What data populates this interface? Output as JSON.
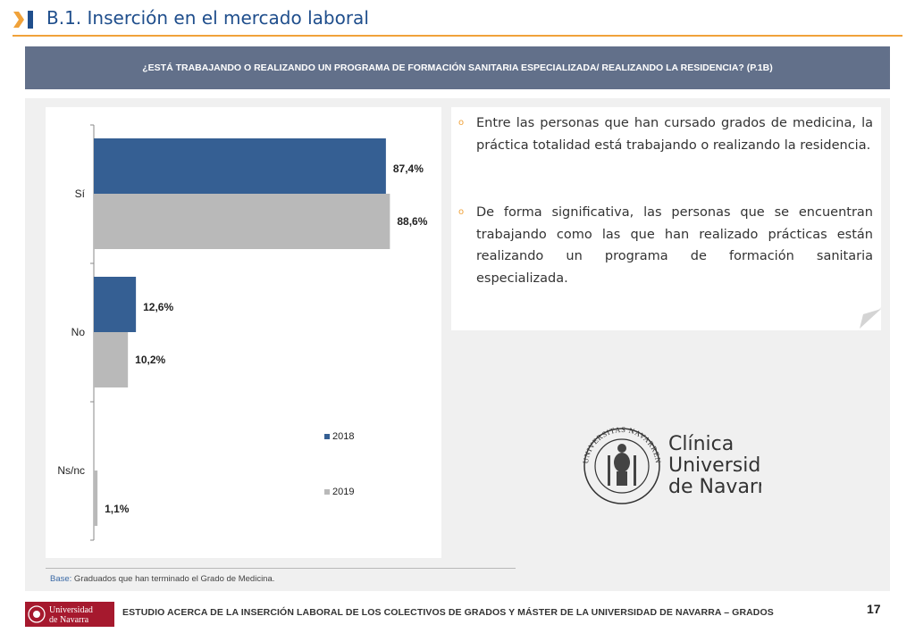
{
  "header": {
    "title": "B.1. Inserción en el mercado laboral",
    "accent_color": "#f0a23a",
    "mark_color": "#1f4e8c"
  },
  "question": "¿ESTÁ TRABAJANDO O REALIZANDO UN PROGRAMA DE FORMACIÓN SANITARIA ESPECIALIZADA/ REALIZANDO LA RESIDENCIA? (P.1B)",
  "chart_data": {
    "type": "bar",
    "orientation": "horizontal",
    "categories": [
      "Sí",
      "No",
      "Ns/nc"
    ],
    "series": [
      {
        "name": "2018",
        "values": [
          87.4,
          12.6,
          0
        ],
        "labels": [
          "87,4%",
          "12,6%",
          ""
        ],
        "color": "#355f93"
      },
      {
        "name": "2019",
        "values": [
          88.6,
          10.2,
          1.1
        ],
        "labels": [
          "88,6%",
          "10,2%",
          "1,1%"
        ],
        "color": "#b9b9b9"
      }
    ],
    "xlim": [
      0,
      100
    ],
    "grid": false,
    "legend_position": "bottom-right"
  },
  "bullets": [
    "Entre las personas que han cursado grados de medicina, la práctica totalidad está trabajando o realizando la residencia.",
    "De forma significativa, las personas que se encuentran trabajando como las que han realizado prácticas están realizando un programa de formación sanitaria especializada."
  ],
  "bullet_marker": "o",
  "logo_cun": {
    "line1": "Clínica",
    "line2": "Universidad",
    "line3": "de Navarra",
    "seal_text": "UNIVERSITAS NAVARRENSIS"
  },
  "footnote": {
    "key": "Base:",
    "text": " Graduados que han terminado el Grado de Medicina."
  },
  "footer": {
    "logo_line1": "Universidad",
    "logo_line2": "de Navarra",
    "logo_color": "#a6192e",
    "text": "ESTUDIO ACERCA DE LA INSERCIÓN LABORAL DE LOS COLECTIVOS DE GRADOS Y MÁSTER DE LA UNIVERSIDAD DE NAVARRA – GRADOS",
    "page_number": "17"
  }
}
